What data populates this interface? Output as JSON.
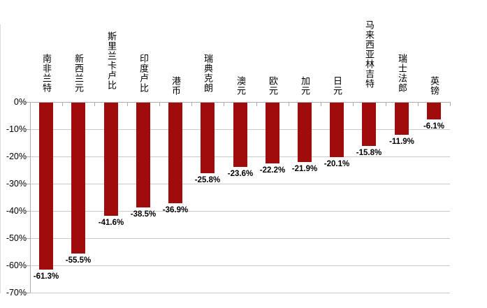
{
  "chart_data": {
    "type": "bar",
    "title": "",
    "orientation": "vertical-negative",
    "categories": [
      "南非兰特",
      "新西兰元",
      "斯里兰卡卢比",
      "印度卢比",
      "港币",
      "瑞典克朗",
      "澳元",
      "欧元",
      "加元",
      "日元",
      "马来西亚林吉特",
      "瑞士法郎",
      "英镑"
    ],
    "values": [
      -61.3,
      -55.5,
      -41.6,
      -38.5,
      -36.9,
      -25.8,
      -23.6,
      -22.2,
      -21.9,
      -20.1,
      -15.8,
      -11.9,
      -6.1
    ],
    "data_labels": [
      "-61.3%",
      "-55.5%",
      "-41.6%",
      "-38.5%",
      "-36.9%",
      "-25.8%",
      "-23.6%",
      "-22.2%",
      "-21.9%",
      "-20.1%",
      "-15.8%",
      "-11.9%",
      "-6.1%"
    ],
    "y_tick_labels": [
      "0%",
      "-10%",
      "-20%",
      "-30%",
      "-40%",
      "-50%",
      "-60%",
      "-70%"
    ],
    "y_tick_values": [
      0,
      -10,
      -20,
      -30,
      -40,
      -50,
      -60,
      -70
    ],
    "ylim": [
      -70,
      0
    ],
    "xlabel": "",
    "ylabel": "",
    "grid": true,
    "legend": "none",
    "colors": {
      "bar": "#a00b0b",
      "gridline": "#c9c9c9",
      "axis": "#ababab",
      "text": "#000000",
      "background": "#ffffff",
      "edge_artifact": "#dcdcdc"
    }
  }
}
